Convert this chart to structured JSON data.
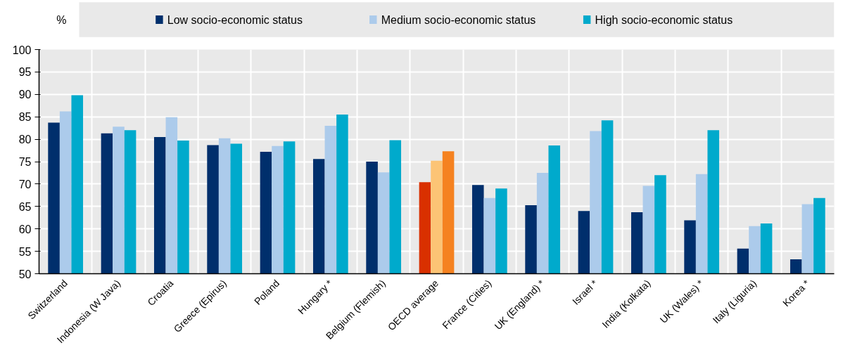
{
  "chart_data": {
    "type": "bar",
    "ylabel": "%",
    "categories": [
      "Switzerland",
      "Indonesia (W Java)",
      "Croatia",
      "Greece (Epirus)",
      "Poland",
      "Hungary *",
      "Belgium (Flemish)",
      "OECD average",
      "France (Cities)",
      "UK (England) *",
      "Israel *",
      "India (Kolkata)",
      "UK (Wales) *",
      "Italy (Liguria)",
      "Korea *"
    ],
    "series": [
      {
        "name": "Low socio-economic status",
        "color": "#002f6c",
        "colors": [
          "#002f6c",
          "#002f6c",
          "#002f6c",
          "#002f6c",
          "#002f6c",
          "#002f6c",
          "#002f6c",
          "#d93000",
          "#002f6c",
          "#002f6c",
          "#002f6c",
          "#002f6c",
          "#002f6c",
          "#002f6c",
          "#002f6c"
        ],
        "values": [
          83.7,
          81.3,
          80.5,
          78.7,
          77.2,
          75.6,
          75.0,
          70.4,
          69.8,
          65.3,
          64.0,
          63.7,
          61.9,
          55.6,
          53.2
        ]
      },
      {
        "name": "Medium socio-economic status",
        "color": "#accbeb",
        "colors": [
          "#accbeb",
          "#accbeb",
          "#accbeb",
          "#accbeb",
          "#accbeb",
          "#accbeb",
          "#accbeb",
          "#fcc475",
          "#accbeb",
          "#accbeb",
          "#accbeb",
          "#accbeb",
          "#accbeb",
          "#accbeb",
          "#accbeb"
        ],
        "values": [
          86.2,
          82.8,
          84.9,
          80.2,
          78.5,
          83.0,
          72.6,
          75.2,
          66.9,
          72.5,
          81.8,
          69.6,
          72.2,
          60.6,
          65.5
        ]
      },
      {
        "name": "High socio-economic status",
        "color": "#00aacc",
        "colors": [
          "#00aacc",
          "#00aacc",
          "#00aacc",
          "#00aacc",
          "#00aacc",
          "#00aacc",
          "#00aacc",
          "#f58220",
          "#00aacc",
          "#00aacc",
          "#00aacc",
          "#00aacc",
          "#00aacc",
          "#00aacc",
          "#00aacc"
        ],
        "values": [
          89.8,
          82.0,
          79.7,
          79.0,
          79.5,
          85.5,
          79.8,
          77.3,
          69.0,
          78.6,
          84.2,
          72.0,
          82.0,
          61.2,
          66.9
        ]
      }
    ],
    "ylim": [
      50,
      100
    ],
    "yticks": [
      50,
      55,
      60,
      65,
      70,
      75,
      80,
      85,
      90,
      95,
      100
    ],
    "grid": true,
    "legend": "top"
  }
}
